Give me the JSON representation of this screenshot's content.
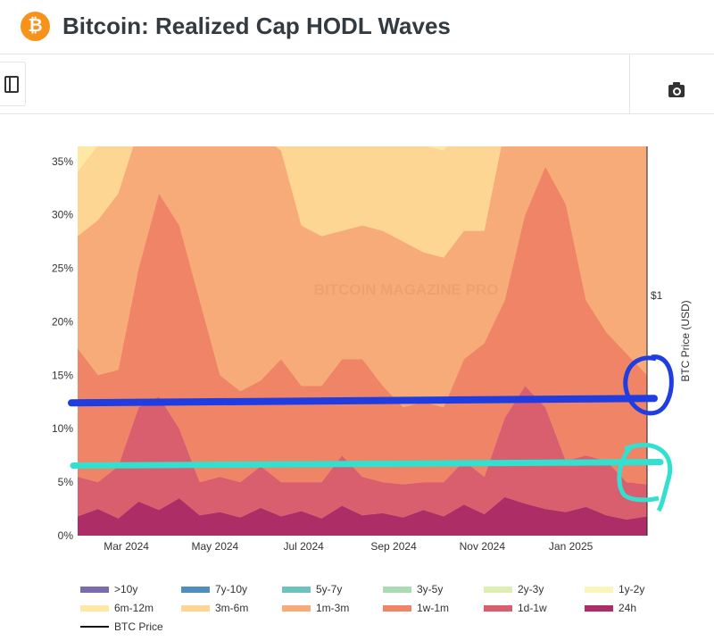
{
  "header": {
    "title": "Bitcoin: Realized Cap HODL Waves",
    "logo_text": "₿"
  },
  "toolbar": {
    "panel_icon": "sidebar-panel-icon",
    "camera_icon": "camera-icon"
  },
  "chart_data": {
    "type": "area",
    "stacked": true,
    "title": "Bitcoin: Realized Cap HODL Waves",
    "ylim": [
      0,
      36.4
    ],
    "xlim": [
      "2024-01-25",
      "2025-02-20"
    ],
    "yticks": [
      "0%",
      "5%",
      "10%",
      "15%",
      "20%",
      "25%",
      "30%",
      "35%"
    ],
    "ytick_values": [
      0,
      5,
      10,
      15,
      20,
      25,
      30,
      35
    ],
    "xticks": [
      "Mar 2024",
      "May 2024",
      "Jul 2024",
      "Sep 2024",
      "Nov 2024",
      "Jan 2025"
    ],
    "xtick_dates": [
      "2024-03-01",
      "2024-05-01",
      "2024-07-01",
      "2024-09-01",
      "2024-11-01",
      "2025-01-01"
    ],
    "right_axis": {
      "label": "BTC Price (USD)",
      "tick": "$1"
    },
    "watermark": "BITCOIN MAGAZINE PRO",
    "grid": false,
    "legend_position": "bottom",
    "x": [
      "2024-01-25",
      "2024-02-08",
      "2024-02-22",
      "2024-03-07",
      "2024-03-21",
      "2024-04-04",
      "2024-04-18",
      "2024-05-02",
      "2024-05-16",
      "2024-05-30",
      "2024-06-13",
      "2024-06-27",
      "2024-07-11",
      "2024-07-25",
      "2024-08-08",
      "2024-08-22",
      "2024-09-05",
      "2024-09-19",
      "2024-10-03",
      "2024-10-17",
      "2024-10-31",
      "2024-11-14",
      "2024-11-28",
      "2024-12-12",
      "2024-12-26",
      "2025-01-09",
      "2025-01-23",
      "2025-02-06",
      "2025-02-20"
    ],
    "series": [
      {
        "name": "24h",
        "color": "#ad2d67",
        "values": [
          1.8,
          2.5,
          1.6,
          3.2,
          2.4,
          3.5,
          1.9,
          2.2,
          1.7,
          2.6,
          1.8,
          2.3,
          1.6,
          2.8,
          1.9,
          2.1,
          1.7,
          2.4,
          1.8,
          2.9,
          2.0,
          3.6,
          3.0,
          2.5,
          2.2,
          2.7,
          1.9,
          1.5,
          1.8
        ]
      },
      {
        "name": "1d-1w",
        "color": "#d95f6f",
        "values": [
          3.7,
          2.5,
          4.9,
          8.8,
          10.6,
          6.5,
          3.1,
          3.3,
          3.3,
          3.9,
          3.2,
          2.7,
          3.4,
          4.7,
          3.6,
          2.9,
          3.1,
          2.6,
          3.2,
          4.1,
          3.5,
          7.4,
          11.0,
          9.5,
          4.8,
          4.8,
          5.1,
          3.5,
          3.0
        ]
      },
      {
        "name": "1w-1m",
        "color": "#ef8467",
        "values": [
          12,
          10,
          9,
          13,
          19,
          19,
          17,
          9.5,
          8.5,
          8,
          11.5,
          9,
          9,
          9,
          11,
          9,
          7.2,
          7.5,
          7,
          9.5,
          12.5,
          11,
          16,
          22.5,
          24,
          14.5,
          12,
          12,
          10.2
        ]
      },
      {
        "name": "1m-3m",
        "color": "#f7ab78",
        "values": [
          10.5,
          14.5,
          16.5,
          13,
          8,
          12,
          18,
          24,
          24.5,
          23,
          19.5,
          15,
          14,
          12,
          12.5,
          14.5,
          15.5,
          14,
          14,
          12,
          10.5,
          16,
          12,
          9.5,
          12,
          19,
          21,
          22,
          23
        ]
      },
      {
        "name": "3m-6m",
        "color": "#fdd693",
        "values": [
          6,
          7,
          10,
          10,
          10,
          10,
          10,
          10,
          10,
          10,
          10,
          10,
          10,
          10,
          10,
          10,
          10,
          10,
          10,
          10,
          10,
          10,
          10,
          10,
          10,
          10,
          10,
          10,
          10
        ]
      },
      {
        "name": "6m-12m",
        "color": "#fde9a4",
        "values": [
          5,
          5,
          5,
          5,
          5,
          5,
          5,
          5,
          5,
          5,
          5,
          5,
          5,
          5,
          5,
          5,
          5,
          5,
          5,
          5,
          5,
          5,
          5,
          5,
          5,
          5,
          5,
          5,
          5
        ]
      }
    ],
    "legend": [
      {
        "name": ">10y",
        "color": "#7b6bb0"
      },
      {
        "name": "7y-10y",
        "color": "#4e8fc0"
      },
      {
        "name": "5y-7y",
        "color": "#6cc3bd"
      },
      {
        "name": "3y-5y",
        "color": "#a9dcb3"
      },
      {
        "name": "2y-3y",
        "color": "#dcf0b1"
      },
      {
        "name": "1y-2y",
        "color": "#f8f6bc"
      },
      {
        "name": "6m-12m",
        "color": "#fde9a4"
      },
      {
        "name": "3m-6m",
        "color": "#fdd693"
      },
      {
        "name": "1m-3m",
        "color": "#f7ab78"
      },
      {
        "name": "1w-1m",
        "color": "#ef8467"
      },
      {
        "name": "1d-1w",
        "color": "#d95f6f"
      },
      {
        "name": "24h",
        "color": "#ad2d67"
      },
      {
        "name": "BTC Price",
        "color": "#111111",
        "line": true
      }
    ],
    "annotations": [
      {
        "type": "hand-drawn horizontal line with circle",
        "color": "#1f3de0",
        "level_percent": 12.5
      },
      {
        "type": "hand-drawn horizontal line with circle",
        "color": "#33e0d0",
        "level_percent": 6.8
      }
    ]
  }
}
